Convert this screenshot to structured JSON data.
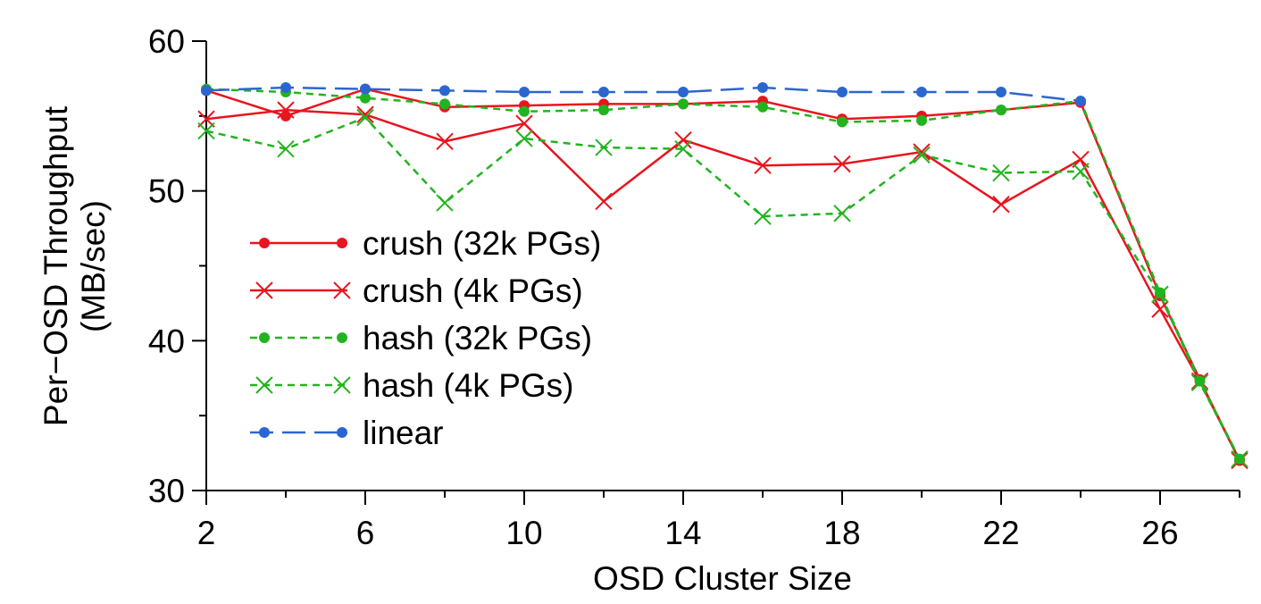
{
  "chart_data": {
    "type": "line",
    "title": "",
    "xlabel": "OSD Cluster Size",
    "ylabel_line1": "Per−OSD Throughput",
    "ylabel_line2": "(MB/sec)",
    "xlim": [
      2,
      28
    ],
    "ylim": [
      30,
      60
    ],
    "xticks": [
      2,
      6,
      10,
      14,
      18,
      22,
      26
    ],
    "yticks": [
      30,
      40,
      50,
      60
    ],
    "grid": false,
    "legend_position": "left",
    "series": [
      {
        "name": "crush (32k PGs)",
        "color": "#e8141e",
        "dash": "solid",
        "marker": "dot",
        "points": [
          [
            2,
            56.7
          ],
          [
            4,
            55.0
          ],
          [
            6,
            56.8
          ],
          [
            8,
            55.6
          ],
          [
            10,
            55.7
          ],
          [
            12,
            55.8
          ],
          [
            14,
            55.8
          ],
          [
            16,
            56.0
          ],
          [
            18,
            54.8
          ],
          [
            20,
            55.0
          ],
          [
            22,
            55.4
          ],
          [
            24,
            55.9
          ],
          [
            26,
            43.0
          ],
          [
            27,
            37.4
          ],
          [
            28,
            32.0
          ]
        ]
      },
      {
        "name": "crush (4k PGs)",
        "color": "#e8141e",
        "dash": "solid",
        "marker": "x",
        "points": [
          [
            2,
            54.8
          ],
          [
            4,
            55.4
          ],
          [
            6,
            55.1
          ],
          [
            8,
            53.3
          ],
          [
            10,
            54.5
          ],
          [
            12,
            49.3
          ],
          [
            14,
            53.4
          ],
          [
            16,
            51.7
          ],
          [
            18,
            51.8
          ],
          [
            20,
            52.6
          ],
          [
            22,
            49.1
          ],
          [
            24,
            52.1
          ],
          [
            26,
            42.1
          ],
          [
            27,
            37.3
          ],
          [
            28,
            32.0
          ]
        ]
      },
      {
        "name": "hash (32k PGs)",
        "color": "#22b41e",
        "dash": "short",
        "marker": "dot",
        "points": [
          [
            2,
            56.8
          ],
          [
            4,
            56.6
          ],
          [
            6,
            56.2
          ],
          [
            8,
            55.8
          ],
          [
            10,
            55.3
          ],
          [
            12,
            55.4
          ],
          [
            14,
            55.8
          ],
          [
            16,
            55.6
          ],
          [
            18,
            54.6
          ],
          [
            20,
            54.7
          ],
          [
            22,
            55.4
          ],
          [
            24,
            56.0
          ],
          [
            26,
            43.2
          ],
          [
            27,
            37.3
          ],
          [
            28,
            32.1
          ]
        ]
      },
      {
        "name": "hash (4k PGs)",
        "color": "#22b41e",
        "dash": "short",
        "marker": "x",
        "points": [
          [
            2,
            54.0
          ],
          [
            4,
            52.8
          ],
          [
            6,
            54.9
          ],
          [
            8,
            49.2
          ],
          [
            10,
            53.5
          ],
          [
            12,
            52.9
          ],
          [
            14,
            52.8
          ],
          [
            16,
            48.3
          ],
          [
            18,
            48.5
          ],
          [
            20,
            52.4
          ],
          [
            22,
            51.2
          ],
          [
            24,
            51.3
          ],
          [
            26,
            43.1
          ],
          [
            27,
            37.2
          ],
          [
            28,
            32.1
          ]
        ]
      },
      {
        "name": "linear",
        "color": "#2b66d0",
        "dash": "long",
        "marker": "dot",
        "points": [
          [
            2,
            56.7
          ],
          [
            4,
            56.9
          ],
          [
            6,
            56.8
          ],
          [
            8,
            56.7
          ],
          [
            10,
            56.6
          ],
          [
            12,
            56.6
          ],
          [
            14,
            56.6
          ],
          [
            16,
            56.9
          ],
          [
            18,
            56.6
          ],
          [
            20,
            56.6
          ],
          [
            22,
            56.6
          ],
          [
            24,
            56.0
          ]
        ]
      }
    ]
  }
}
